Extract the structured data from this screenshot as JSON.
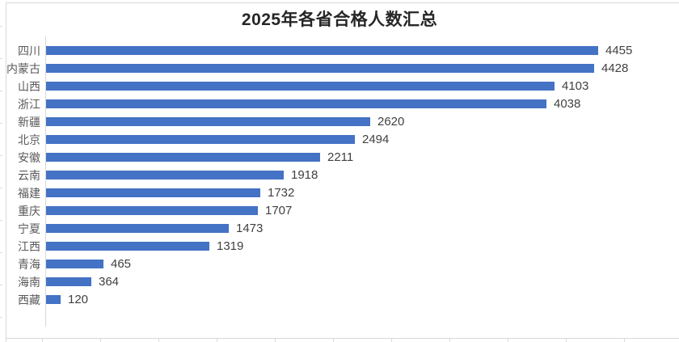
{
  "chart_data": {
    "type": "bar",
    "orientation": "horizontal",
    "title": "2025年各省合格人数汇总",
    "categories": [
      "四川",
      "内蒙古",
      "山西",
      "浙江",
      "新疆",
      "北京",
      "安徽",
      "云南",
      "福建",
      "重庆",
      "宁夏",
      "江西",
      "青海",
      "海南",
      "西藏"
    ],
    "values": [
      4455,
      4428,
      4103,
      4038,
      2620,
      2494,
      2211,
      1918,
      1732,
      1707,
      1473,
      1319,
      465,
      364,
      120
    ],
    "series_name": "合格人数",
    "data_labels": "shown at bar end",
    "xlabel": "",
    "ylabel": "",
    "xlim": [
      0,
      5000
    ],
    "value_axis_tick_labels_visible": false,
    "grid": false,
    "legend": "none"
  },
  "colors": {
    "bar": "#4472c4",
    "title_text": "#262626",
    "category_label": "#595959",
    "value_label": "#404040",
    "axis_line": "#d9d9d9",
    "background": "#ffffff"
  }
}
